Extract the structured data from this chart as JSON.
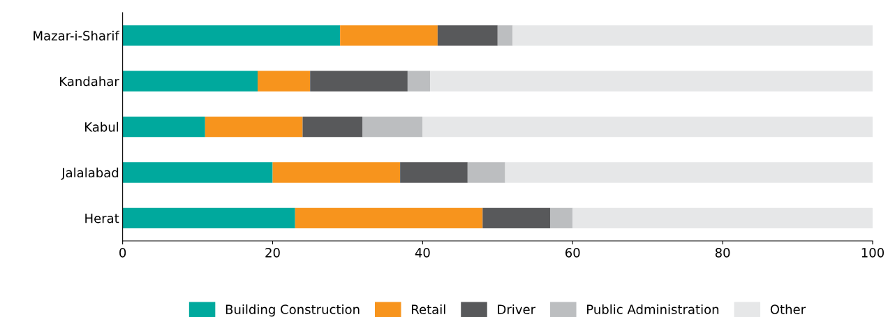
{
  "chart_data": {
    "type": "bar",
    "orientation": "horizontal",
    "stacked": true,
    "categories": [
      "Mazar-i-Sharif",
      "Kandahar",
      "Kabul",
      "Jalalabad",
      "Herat"
    ],
    "series": [
      {
        "name": "Building Construction",
        "color": "#00a99d",
        "values": [
          29,
          18,
          11,
          20,
          23
        ]
      },
      {
        "name": "Retail",
        "color": "#f7941d",
        "values": [
          13,
          7,
          13,
          17,
          25
        ]
      },
      {
        "name": "Driver",
        "color": "#58595b",
        "values": [
          8,
          13,
          8,
          9,
          9
        ]
      },
      {
        "name": "Public Administration",
        "color": "#bcbec0",
        "values": [
          2,
          3,
          8,
          5,
          3
        ]
      },
      {
        "name": "Other",
        "color": "#e6e7e8",
        "values": [
          48,
          59,
          60,
          49,
          40
        ]
      }
    ],
    "xlim": [
      0,
      100
    ],
    "xticks": [
      0,
      20,
      40,
      60,
      80,
      100
    ],
    "grid": false,
    "legend": "bottom"
  }
}
